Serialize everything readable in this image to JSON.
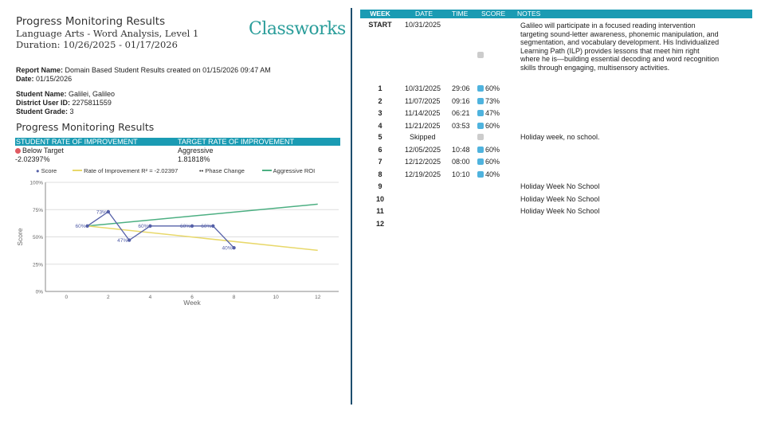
{
  "header": {
    "title": "Progress Monitoring Results",
    "subject": "Language Arts - Word Analysis, Level 1",
    "duration": "Duration: 10/26/2025 - 01/17/2026",
    "logo": "Classworks"
  },
  "report": {
    "report_name_label": "Report Name:",
    "report_name": "Domain Based Student Results created on 01/15/2026 09:47 AM",
    "date_label": "Date:",
    "date": "01/15/2026",
    "student_name_label": "Student Name:",
    "student_name": "Galilei, Galileo",
    "district_id_label": "District User ID:",
    "district_id": "2275811559",
    "grade_label": "Student Grade:",
    "grade": "3"
  },
  "section_title": "Progress Monitoring Results",
  "roi": {
    "student_header": "STUDENT RATE OF IMPROVEMENT",
    "target_header": "TARGET RATE OF IMPROVEMENT",
    "status": "Below Target",
    "status_color": "#e05a62",
    "student_value": "-2.02397%",
    "target_name": "Aggressive",
    "target_value": "1.81818%"
  },
  "chart_data": {
    "type": "line",
    "xlabel": "Week",
    "ylabel": "Score",
    "xlim": [
      -1,
      13
    ],
    "ylim": [
      0,
      100
    ],
    "xticks": [
      0,
      2,
      4,
      6,
      8,
      10,
      12
    ],
    "yticks": [
      "0%",
      "25%",
      "50%",
      "75%",
      "100%"
    ],
    "grid": true,
    "legend_position": "top",
    "series": [
      {
        "name": "Score",
        "type": "line-markers",
        "color": "#5560a8",
        "x": [
          1,
          2,
          3,
          4,
          6,
          7,
          8
        ],
        "y": [
          60,
          73,
          47,
          60,
          60,
          60,
          40
        ],
        "labels": [
          "60%",
          "73%",
          "47%",
          "60%",
          "60%",
          "60%",
          "40%"
        ]
      },
      {
        "name": "Rate of Improvement R² = -2.02397",
        "type": "line",
        "color": "#e8d86a",
        "x": [
          1,
          12
        ],
        "y": [
          60,
          37.7
        ]
      },
      {
        "name": "Phase Change",
        "type": "dots",
        "color": "#222"
      },
      {
        "name": "Aggressive ROI",
        "type": "line",
        "color": "#4caf82",
        "x": [
          1,
          12
        ],
        "y": [
          60,
          80
        ]
      }
    ]
  },
  "table": {
    "headers": [
      "WEEK",
      "DATE",
      "TIME",
      "SCORE",
      "NOTES"
    ],
    "rows": [
      {
        "week": "START",
        "date": "10/31/2025",
        "time": "",
        "score": "",
        "note": "Galileo will participate in a focused reading intervention targeting sound-letter awareness, phonemic manipulation, and segmentation, and vocabulary development. His Individualized Learning Path (ILP) provides lessons that meet him right where he is—building essential decoding and word recognition skills through engaging, multisensory activities."
      },
      {
        "week": "1",
        "date": "10/31/2025",
        "time": "29:06",
        "score": "60%",
        "note": ""
      },
      {
        "week": "2",
        "date": "11/07/2025",
        "time": "09:16",
        "score": "73%",
        "note": ""
      },
      {
        "week": "3",
        "date": "11/14/2025",
        "time": "06:21",
        "score": "47%",
        "note": ""
      },
      {
        "week": "4",
        "date": "11/21/2025",
        "time": "03:53",
        "score": "60%",
        "note": ""
      },
      {
        "week": "5",
        "date": "Skipped",
        "time": "",
        "score": "",
        "note": "Holiday week, no school."
      },
      {
        "week": "6",
        "date": "12/05/2025",
        "time": "10:48",
        "score": "60%",
        "note": ""
      },
      {
        "week": "7",
        "date": "12/12/2025",
        "time": "08:00",
        "score": "60%",
        "note": ""
      },
      {
        "week": "8",
        "date": "12/19/2025",
        "time": "10:10",
        "score": "40%",
        "note": ""
      },
      {
        "week": "9",
        "date": "",
        "time": "",
        "score": "",
        "note": "Holiday Week No School"
      },
      {
        "week": "10",
        "date": "",
        "time": "",
        "score": "",
        "note": "Holiday Week No School"
      },
      {
        "week": "11",
        "date": "",
        "time": "",
        "score": "",
        "note": "Holiday Week No School"
      },
      {
        "week": "12",
        "date": "",
        "time": "",
        "score": "",
        "note": ""
      }
    ]
  }
}
